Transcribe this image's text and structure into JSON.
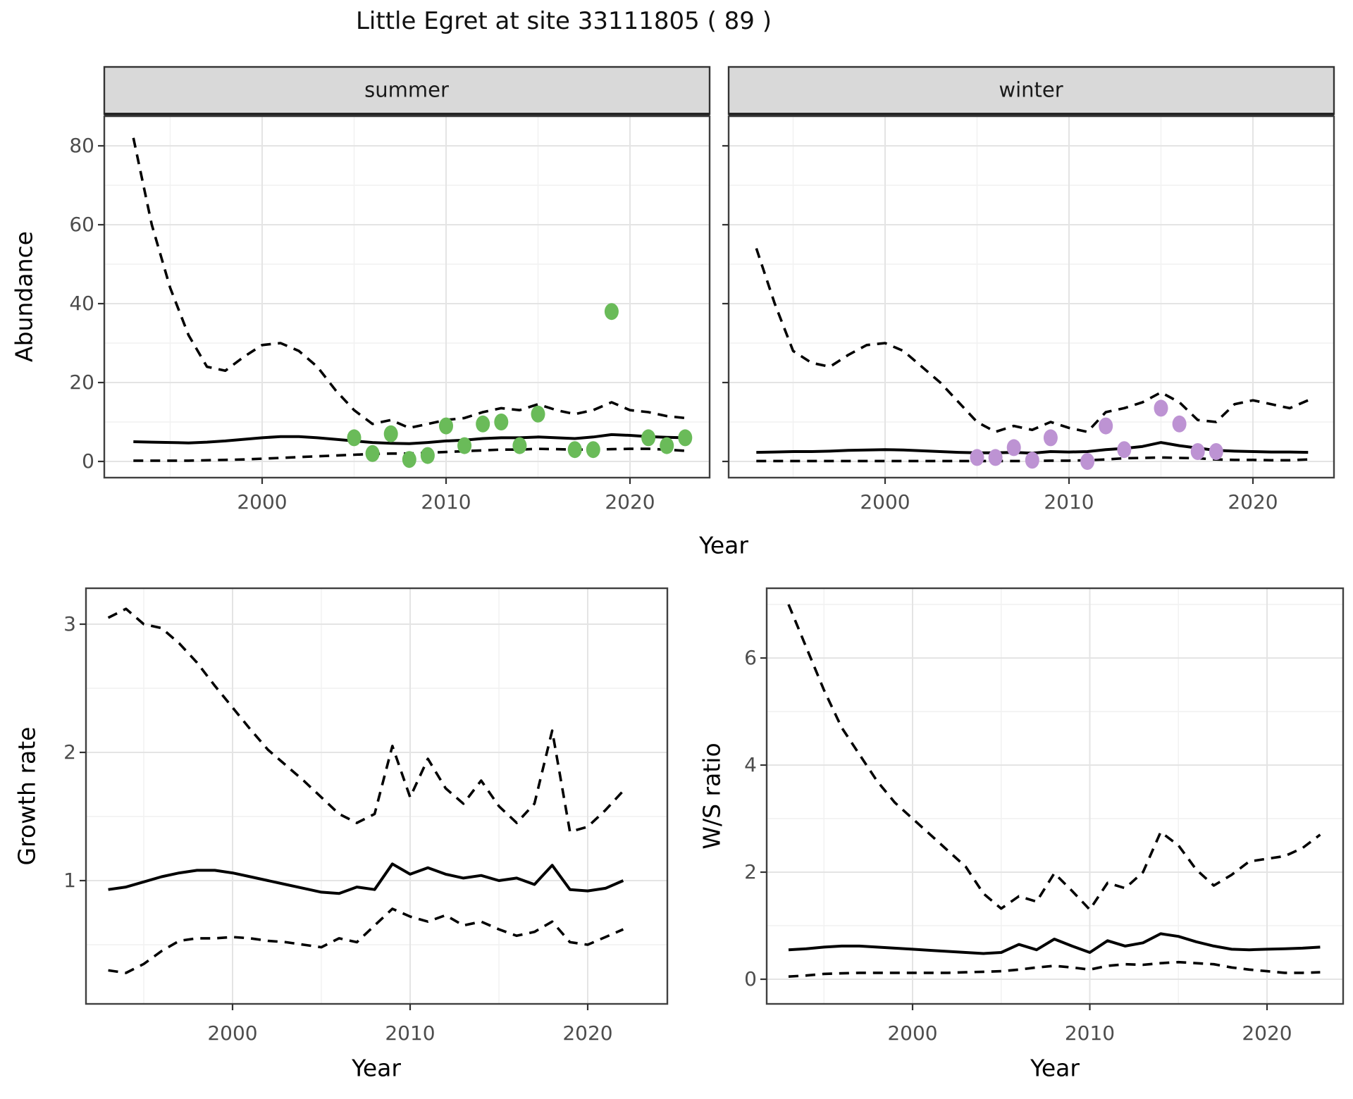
{
  "title": "Little Egret at site 33111805 ( 89 )",
  "axis_titles": {
    "abundance": "Abundance",
    "year": "Year",
    "growth_rate": "Growth rate",
    "ws_ratio": "W/S ratio"
  },
  "colors": {
    "summer_point": "#6abb59",
    "winter_point": "#bd93d3",
    "line": "#000000",
    "grid_major": "#e4e4e4",
    "grid_minor": "#f1f1f1",
    "panel_border": "#404040",
    "strip_bg": "#d9d9d9",
    "strip_border": "#333333",
    "tick_mark": "#333333",
    "tick_label": "#4d4d4d",
    "background": "#ffffff"
  },
  "chart_data": [
    {
      "id": "abundance_summer",
      "type": "line",
      "facet_label": "summer",
      "xlabel": "Year",
      "ylabel": "Abundance",
      "ylim": [
        -3.5,
        88
      ],
      "yticks": [
        0,
        20,
        40,
        60,
        80
      ],
      "yticks_minor": [
        10,
        30,
        50,
        70
      ],
      "xticks": [
        2000,
        2010,
        2020
      ],
      "xticks_minor": [
        1995,
        2005,
        2015
      ],
      "x": [
        1993,
        1994,
        1995,
        1996,
        1997,
        1998,
        1999,
        2000,
        2001,
        2002,
        2003,
        2004,
        2005,
        2006,
        2007,
        2008,
        2009,
        2010,
        2011,
        2012,
        2013,
        2014,
        2015,
        2016,
        2017,
        2018,
        2019,
        2020,
        2021,
        2022,
        2023
      ],
      "series": [
        {
          "name": "upper_95ci",
          "style": "dashed",
          "values": [
            82,
            60,
            44,
            32,
            24,
            23,
            26.5,
            29.5,
            30,
            28,
            24,
            18,
            13,
            9.5,
            10.5,
            8.5,
            9.5,
            10.5,
            11,
            12.5,
            13.5,
            13,
            14.5,
            13,
            12,
            13,
            15,
            13,
            12.5,
            11.5,
            11
          ]
        },
        {
          "name": "modelled_mean",
          "style": "solid",
          "values": [
            5,
            4.9,
            4.8,
            4.7,
            4.9,
            5.2,
            5.6,
            6,
            6.3,
            6.3,
            6,
            5.6,
            5.2,
            4.8,
            4.6,
            4.5,
            4.8,
            5.2,
            5.4,
            5.8,
            6,
            6,
            6.2,
            6,
            5.8,
            6.2,
            6.8,
            6.6,
            6.3,
            6.1,
            6
          ]
        },
        {
          "name": "lower_95ci",
          "style": "dashed",
          "values": [
            0.2,
            0.2,
            0.2,
            0.2,
            0.3,
            0.4,
            0.5,
            0.7,
            0.9,
            1.1,
            1.3,
            1.5,
            1.7,
            1.9,
            2,
            2,
            2.2,
            2.4,
            2.6,
            2.8,
            3,
            3,
            3.2,
            3.1,
            3,
            3,
            3.1,
            3.2,
            3.2,
            3,
            2.7
          ]
        }
      ],
      "points": {
        "name": "observed_counts_summer",
        "color_key": "summer_point",
        "xy": [
          [
            2005,
            6
          ],
          [
            2006,
            2
          ],
          [
            2007,
            7
          ],
          [
            2008,
            0.5
          ],
          [
            2009,
            1.5
          ],
          [
            2010,
            9
          ],
          [
            2011,
            4
          ],
          [
            2012,
            9.5
          ],
          [
            2013,
            10
          ],
          [
            2014,
            4
          ],
          [
            2015,
            12
          ],
          [
            2017,
            3
          ],
          [
            2018,
            3
          ],
          [
            2019,
            38
          ],
          [
            2021,
            6
          ],
          [
            2022,
            4
          ],
          [
            2023,
            6
          ]
        ]
      }
    },
    {
      "id": "abundance_winter",
      "type": "line",
      "facet_label": "winter",
      "xlabel": "Year",
      "ylabel": "Abundance",
      "ylim": [
        -3.5,
        88
      ],
      "yticks": [
        0,
        20,
        40,
        60,
        80
      ],
      "yticks_minor": [
        10,
        30,
        50,
        70
      ],
      "xticks": [
        2000,
        2010,
        2020
      ],
      "xticks_minor": [
        1995,
        2005,
        2015
      ],
      "x": [
        1993,
        1994,
        1995,
        1996,
        1997,
        1998,
        1999,
        2000,
        2001,
        2002,
        2003,
        2004,
        2005,
        2006,
        2007,
        2008,
        2009,
        2010,
        2011,
        2012,
        2013,
        2014,
        2015,
        2016,
        2017,
        2018,
        2019,
        2020,
        2021,
        2022,
        2023
      ],
      "series": [
        {
          "name": "upper_95ci",
          "style": "dashed",
          "values": [
            54,
            40,
            28,
            25,
            24,
            27,
            29.5,
            30,
            28,
            24,
            20,
            15,
            10,
            7.5,
            9,
            8,
            10,
            8.5,
            7.5,
            12.5,
            13.5,
            15,
            17.5,
            15,
            10.5,
            10,
            14.5,
            15.5,
            14.5,
            13.5,
            15.5
          ]
        },
        {
          "name": "modelled_mean",
          "style": "solid",
          "values": [
            2.3,
            2.4,
            2.5,
            2.5,
            2.6,
            2.8,
            2.9,
            3,
            2.9,
            2.7,
            2.5,
            2.3,
            2.2,
            2.2,
            2.3,
            2.1,
            2.5,
            2.4,
            2.5,
            3,
            3.3,
            3.8,
            4.8,
            4,
            3.4,
            2.8,
            2.6,
            2.5,
            2.4,
            2.4,
            2.3
          ]
        },
        {
          "name": "lower_95ci",
          "style": "dashed",
          "values": [
            0.1,
            0.1,
            0.1,
            0.1,
            0.1,
            0.1,
            0.1,
            0.1,
            0.1,
            0.1,
            0.1,
            0.1,
            0.1,
            0.1,
            0.1,
            0.1,
            0.2,
            0.2,
            0.3,
            0.5,
            0.8,
            0.9,
            1,
            0.9,
            0.8,
            0.5,
            0.4,
            0.4,
            0.3,
            0.3,
            0.5
          ]
        }
      ],
      "points": {
        "name": "observed_counts_winter",
        "color_key": "winter_point",
        "xy": [
          [
            2005,
            1
          ],
          [
            2006,
            1
          ],
          [
            2007,
            3.5
          ],
          [
            2008,
            0.3
          ],
          [
            2009,
            6
          ],
          [
            2011,
            0
          ],
          [
            2012,
            9
          ],
          [
            2013,
            3
          ],
          [
            2015,
            13.5
          ],
          [
            2016,
            9.5
          ],
          [
            2017,
            2.5
          ],
          [
            2018,
            2.5
          ]
        ]
      }
    },
    {
      "id": "growth_rate",
      "type": "line",
      "facet_label": "",
      "xlabel": "Year",
      "ylabel": "Growth rate",
      "ylim": [
        0.1,
        3.3
      ],
      "yticks": [
        1,
        2,
        3
      ],
      "yticks_minor": [
        0.5,
        1.5,
        2.5
      ],
      "xticks": [
        2000,
        2010,
        2020
      ],
      "xticks_minor": [
        1995,
        2005,
        2015
      ],
      "x": [
        1993,
        1994,
        1995,
        1996,
        1997,
        1998,
        1999,
        2000,
        2001,
        2002,
        2003,
        2004,
        2005,
        2006,
        2007,
        2008,
        2009,
        2010,
        2011,
        2012,
        2013,
        2014,
        2015,
        2016,
        2017,
        2018,
        2019,
        2020,
        2021,
        2022
      ],
      "series": [
        {
          "name": "upper_95ci",
          "style": "dashed",
          "values": [
            3.05,
            3.12,
            3,
            2.97,
            2.85,
            2.7,
            2.52,
            2.35,
            2.18,
            2.02,
            1.9,
            1.78,
            1.65,
            1.52,
            1.45,
            1.52,
            2.05,
            1.65,
            1.95,
            1.72,
            1.6,
            1.78,
            1.58,
            1.45,
            1.6,
            2.17,
            1.38,
            1.42,
            1.55,
            1.7
          ]
        },
        {
          "name": "modelled_mean",
          "style": "solid",
          "values": [
            0.93,
            0.95,
            0.99,
            1.03,
            1.06,
            1.08,
            1.08,
            1.06,
            1.03,
            1,
            0.97,
            0.94,
            0.91,
            0.9,
            0.95,
            0.93,
            1.13,
            1.05,
            1.1,
            1.05,
            1.02,
            1.04,
            1,
            1.02,
            0.97,
            1.12,
            0.93,
            0.92,
            0.94,
            1
          ]
        },
        {
          "name": "lower_95ci",
          "style": "dashed",
          "values": [
            0.3,
            0.28,
            0.35,
            0.45,
            0.53,
            0.55,
            0.55,
            0.56,
            0.55,
            0.53,
            0.52,
            0.5,
            0.48,
            0.55,
            0.52,
            0.65,
            0.78,
            0.72,
            0.68,
            0.73,
            0.65,
            0.68,
            0.62,
            0.57,
            0.6,
            0.68,
            0.52,
            0.5,
            0.56,
            0.62
          ]
        }
      ],
      "points": null
    },
    {
      "id": "ws_ratio",
      "type": "line",
      "facet_label": "",
      "xlabel": "Year",
      "ylabel": "W/S ratio",
      "ylim": [
        -0.4,
        7.4
      ],
      "yticks": [
        0,
        2,
        4,
        6
      ],
      "yticks_minor": [
        1,
        3,
        5,
        7
      ],
      "xticks": [
        2000,
        2010,
        2020
      ],
      "xticks_minor": [
        1995,
        2005,
        2015
      ],
      "x": [
        1993,
        1994,
        1995,
        1996,
        1997,
        1998,
        1999,
        2000,
        2001,
        2002,
        2003,
        2004,
        2005,
        2006,
        2007,
        2008,
        2009,
        2010,
        2011,
        2012,
        2013,
        2014,
        2015,
        2016,
        2017,
        2018,
        2019,
        2020,
        2021,
        2022,
        2023
      ],
      "series": [
        {
          "name": "upper_95ci",
          "style": "dashed",
          "values": [
            7,
            6.2,
            5.4,
            4.7,
            4.2,
            3.7,
            3.3,
            3,
            2.7,
            2.4,
            2.1,
            1.6,
            1.32,
            1.55,
            1.45,
            1.98,
            1.65,
            1.3,
            1.8,
            1.7,
            2,
            2.75,
            2.5,
            2.05,
            1.75,
            1.95,
            2.2,
            2.25,
            2.3,
            2.45,
            2.7
          ]
        },
        {
          "name": "modelled_mean",
          "style": "solid",
          "values": [
            0.55,
            0.57,
            0.6,
            0.62,
            0.62,
            0.6,
            0.58,
            0.56,
            0.54,
            0.52,
            0.5,
            0.48,
            0.5,
            0.65,
            0.55,
            0.75,
            0.62,
            0.5,
            0.72,
            0.62,
            0.68,
            0.85,
            0.8,
            0.7,
            0.62,
            0.56,
            0.55,
            0.56,
            0.57,
            0.58,
            0.6
          ]
        },
        {
          "name": "lower_95ci",
          "style": "dashed",
          "values": [
            0.05,
            0.07,
            0.1,
            0.11,
            0.12,
            0.12,
            0.12,
            0.12,
            0.12,
            0.12,
            0.13,
            0.14,
            0.15,
            0.18,
            0.22,
            0.25,
            0.22,
            0.18,
            0.25,
            0.28,
            0.27,
            0.3,
            0.32,
            0.3,
            0.28,
            0.22,
            0.18,
            0.15,
            0.12,
            0.12,
            0.13
          ]
        }
      ],
      "points": null
    }
  ]
}
